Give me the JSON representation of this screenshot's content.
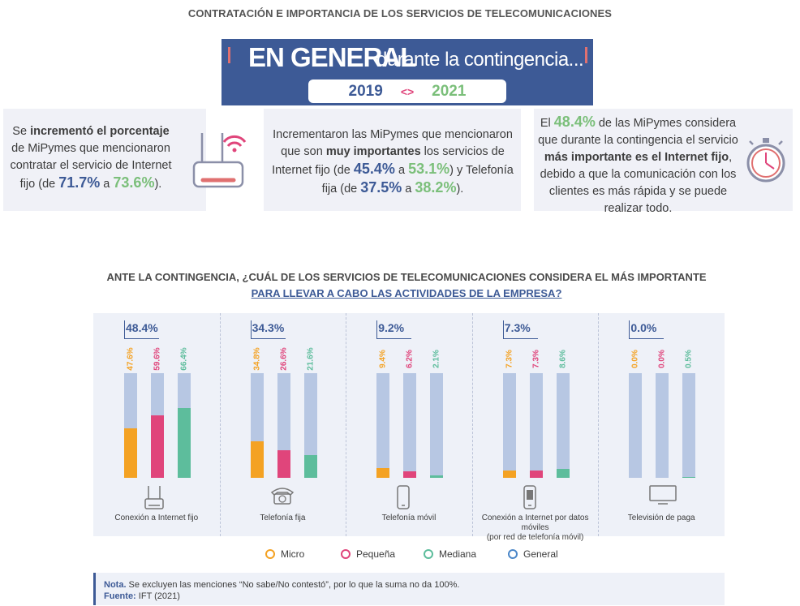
{
  "page_title": "CONTRATACIÓN E IMPORTANCIA DE LOS SERVICIOS DE TELECOMUNICACIONES",
  "banner": {
    "bold": "EN GENERAL",
    "rest": "durante la contingencia...",
    "year_from": "2019",
    "arrow": "<>",
    "year_to": "2021"
  },
  "cards": [
    {
      "t1": "Se ",
      "b1": "incrementó el porcentaje",
      "t2": "de MiPymes que mencionaron contratar el servicio de Internet fijo (de ",
      "v1": "71.7%",
      "t3": " a ",
      "v2": "73.6%",
      "t4": ")."
    },
    {
      "t1": "Incrementaron las MiPymes que mencionaron que son ",
      "b1": "muy importantes",
      "t2": " los servicios de Internet fijo (de ",
      "v1": "45.4%",
      "t3": " a ",
      "v2": "53.1%",
      "t4": ") y Telefonía fija (de ",
      "v3": "37.5%",
      "t5": " a ",
      "v4": "38.2%",
      "t6": ")."
    },
    {
      "t1": "El ",
      "v1": "48.4%",
      "t2": " de las MiPymes considera que durante la contingencia el servicio ",
      "b1": "más importante es el Internet fijo",
      "t3": ", debido a que la comunicación con los clientes es más rápida y se puede realizar todo."
    }
  ],
  "question": {
    "line1": "ANTE LA CONTINGENCIA, ¿CUÁL DE LOS SERVICIOS DE TELECOMUNICACIONES CONSIDERA EL MÁS IMPORTANTE",
    "line2": "PARA LLEVAR A CABO LAS ACTIVIDADES DE LA EMPRESA?"
  },
  "chart_data": {
    "type": "bar",
    "categories": [
      "Conexión a Internet fijo",
      "Telefonía fija",
      "Telefonía móvil",
      "Conexión a Internet por datos móviles (por red de telefonía móvil)",
      "Televisión de paga"
    ],
    "category_lines": [
      [
        "Conexión a Internet fijo"
      ],
      [
        "Telefonía fija"
      ],
      [
        "Telefonía móvil"
      ],
      [
        "Conexión a Internet por datos móviles",
        "(por red de telefonía móvil)"
      ],
      [
        "Televisión de paga"
      ]
    ],
    "series": [
      {
        "name": "Micro",
        "color": "#f4a223",
        "values": [
          47.6,
          34.8,
          9.4,
          7.3,
          0.0
        ],
        "labels": [
          "47.6%",
          "34.8%",
          "9.4%",
          "7.3%",
          "0.0%"
        ]
      },
      {
        "name": "Pequeña",
        "color": "#e0457b",
        "values": [
          59.6,
          26.6,
          6.2,
          7.3,
          0.0
        ],
        "labels": [
          "59.6%",
          "26.6%",
          "6.2%",
          "7.3%",
          "0.0%"
        ]
      },
      {
        "name": "Mediana",
        "color": "#5dbd9c",
        "values": [
          66.4,
          21.6,
          2.1,
          8.6,
          0.5
        ],
        "labels": [
          "66.4%",
          "21.6%",
          "2.1%",
          "8.6%",
          "0.5%"
        ]
      },
      {
        "name": "General",
        "color": "#4a86c8",
        "values": [
          48.4,
          34.3,
          9.2,
          7.3,
          0.0
        ],
        "labels": [
          "48.4%",
          "34.3%",
          "9.2%",
          "7.3%",
          "0.0%"
        ]
      }
    ],
    "ylim": [
      0,
      100
    ],
    "icons": [
      "router-icon",
      "landline-phone-icon",
      "mobile-phone-icon",
      "mobile-data-icon",
      "television-icon"
    ]
  },
  "note": {
    "label": "Nota.",
    "text": " Se excluyen las menciones “No sabe/No contestó”, por lo que la suma no da 100%.",
    "source_label": "Fuente:",
    "source_text": " IFT (2021)"
  },
  "colors": {
    "accent": "#3d5a96",
    "green": "#7bbf7a",
    "track": "#b7c7e3"
  }
}
